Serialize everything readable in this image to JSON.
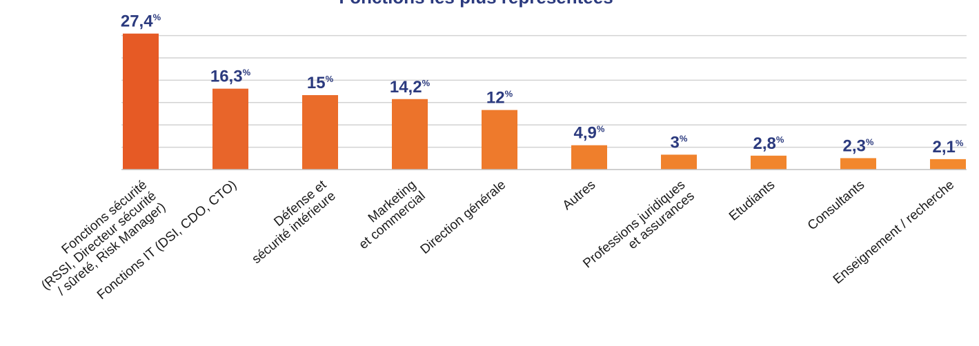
{
  "chart_data": {
    "type": "bar",
    "title": "Fonctions les plus représentées",
    "unit": "%",
    "categories": [
      [
        "Fonctions sécurité",
        "(RSSI, Directeur sécurité",
        "/ sûreté, Risk Manager)"
      ],
      [
        "Fonctions IT (DSI, CDO, CTO)"
      ],
      [
        "Défense et",
        "sécurité intérieure"
      ],
      [
        "Marketing",
        "et commercial"
      ],
      [
        "Direction générale"
      ],
      [
        "Autres"
      ],
      [
        "Professions juridiques",
        "et assurances"
      ],
      [
        "Etudiants"
      ],
      [
        "Consultants"
      ],
      [
        "Enseignement / recherche"
      ]
    ],
    "values": [
      27.4,
      16.3,
      15,
      14.2,
      12,
      4.9,
      3,
      2.8,
      2.3,
      2.1
    ],
    "value_labels": [
      "27,4",
      "16,3",
      "15",
      "14,2",
      "12",
      "4,9",
      "3",
      "2,8",
      "2,3",
      "2,1"
    ],
    "ylim": [
      0,
      30
    ],
    "grid": true,
    "colors": [
      "#e65a25",
      "#e8652a",
      "#ea6c2a",
      "#ec732b",
      "#ee7a2c",
      "#ef7f2c",
      "#f0822c",
      "#f1852d",
      "#f2872d",
      "#f3892e"
    ],
    "label_color": "#2b3a7e"
  }
}
